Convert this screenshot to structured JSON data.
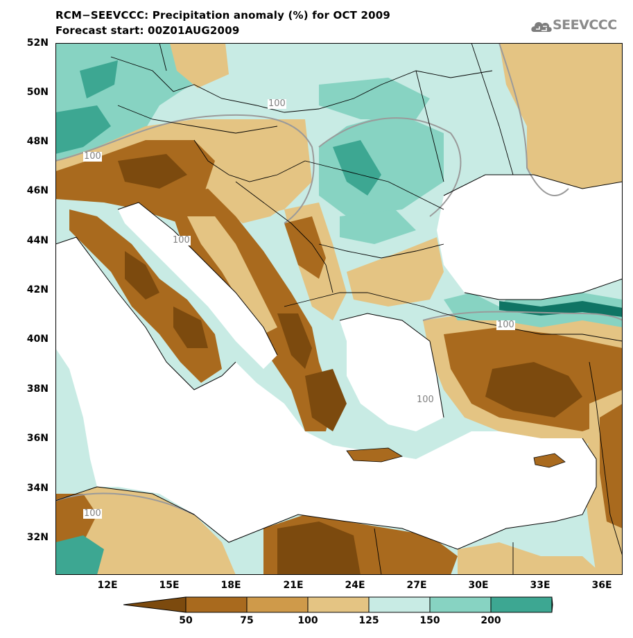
{
  "header": {
    "title_line1": "RCM−SEEVCCC: Precipitation anomaly (%) for OCT 2009",
    "title_line2": "Forecast start: 00Z01AUG2009",
    "logo_text": "SEEVCCC"
  },
  "axes": {
    "lat_labels": [
      "52N",
      "50N",
      "48N",
      "46N",
      "44N",
      "42N",
      "40N",
      "38N",
      "36N",
      "34N",
      "32N"
    ],
    "lon_labels": [
      "12E",
      "15E",
      "18E",
      "21E",
      "24E",
      "27E",
      "30E",
      "33E",
      "36E"
    ]
  },
  "contour_labels": [
    "100",
    "100",
    "100",
    "100",
    "100",
    "100"
  ],
  "legend": {
    "ticks": [
      "50",
      "75",
      "100",
      "125",
      "150",
      "200"
    ],
    "colors": [
      "#7c4a0e",
      "#a96a1e",
      "#cf9a4a",
      "#e4c483",
      "#c8ebe4",
      "#87d3c2",
      "#3da792",
      "#0f7464"
    ]
  },
  "colors": {
    "very_dry": "#7c4a0e",
    "dry": "#a96a1e",
    "slightly_dry": "#e4c483",
    "slightly_wet": "#c8ebe4",
    "wet": "#87d3c2",
    "very_wet": "#3da792",
    "extreme_wet": "#0f7464",
    "sea": "#ffffff",
    "contour": "#9a9a9a",
    "border": "#000000"
  }
}
